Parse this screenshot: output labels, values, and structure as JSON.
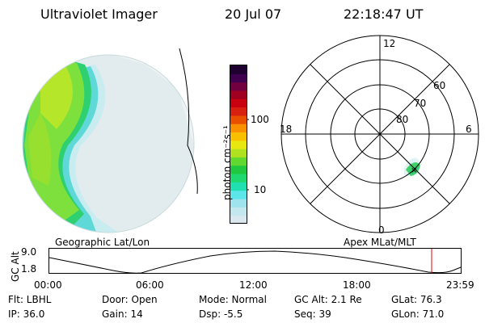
{
  "header": {
    "instrument": "Ultraviolet Imager",
    "date": "20 Jul 07",
    "time": "22:18:47 UT"
  },
  "colorbar": {
    "unit_label": "photon cm⁻²s⁻¹",
    "ticks": [
      "100",
      "10"
    ],
    "colors": [
      "#d8e8ee",
      "#c4e6ee",
      "#9fe3ee",
      "#5ce6ea",
      "#20e0b0",
      "#20d870",
      "#20c840",
      "#60d830",
      "#b0e020",
      "#e8e810",
      "#f8c000",
      "#f89000",
      "#e85000",
      "#d82010",
      "#c80010",
      "#a00020",
      "#700040",
      "#400050",
      "#200030"
    ]
  },
  "polar_plot": {
    "labels": {
      "top": "12",
      "left": "18",
      "right": "6",
      "bottom": "0"
    },
    "lat_labels": [
      "60",
      "70",
      "80"
    ]
  },
  "map_labels": {
    "left": "Geographic Lat/Lon",
    "right": "Apex MLat/MLT"
  },
  "altitude_plot": {
    "axis_label": "GC Alt",
    "y_ticks": [
      "9.0",
      "1.8"
    ],
    "x_ticks": [
      "00:00",
      "06:00",
      "12:00",
      "18:00",
      "23:59"
    ],
    "line_color": "#000000",
    "marker_color": "#e00000"
  },
  "info": {
    "row1": {
      "flt": "Flt: LBHL",
      "door": "Door: Open",
      "mode": "Mode: Normal",
      "gcalt": "GC Alt: 2.1 Re",
      "glat": "GLat:  76.3"
    },
    "row2": {
      "ip": "IP: 36.0",
      "gain": "Gain: 14",
      "dsp": "Dsp:     -5.5",
      "seq": "Seq: 39",
      "glon": "GLon:  71.0"
    }
  }
}
